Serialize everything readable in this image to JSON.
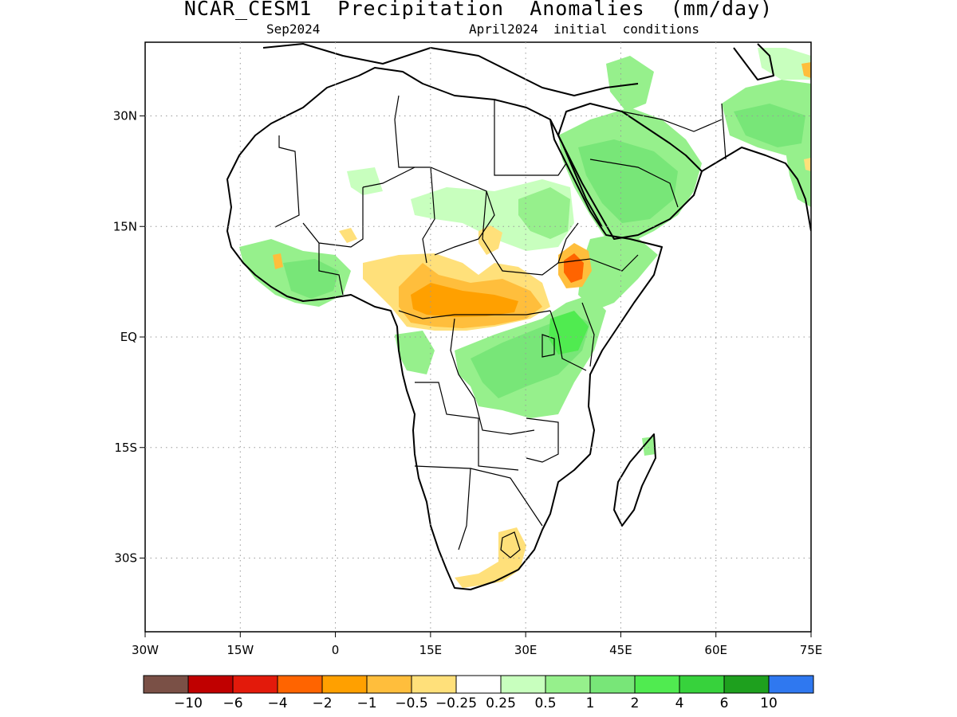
{
  "title": "NCAR_CESM1  Precipitation  Anomalies  (mm/day)",
  "subtitle_left": "Sep2024",
  "subtitle_right": "April2024  initial  conditions",
  "map": {
    "lon_range": [
      -30,
      75
    ],
    "lat_range": [
      -40,
      40
    ],
    "grid": true,
    "x_ticks": [
      "30W",
      "15W",
      "0",
      "15E",
      "30E",
      "45E",
      "60E",
      "75E"
    ],
    "x_tick_values": [
      -30,
      -15,
      0,
      15,
      30,
      45,
      60,
      75
    ],
    "y_ticks": [
      "30N",
      "15N",
      "EQ",
      "15S",
      "30S"
    ],
    "y_tick_values": [
      30,
      15,
      0,
      -15,
      -30
    ]
  },
  "colorbar": {
    "colors": [
      "#7a5046",
      "#c00000",
      "#e31a0b",
      "#ff6400",
      "#ffa000",
      "#ffbe3c",
      "#ffe07a",
      "#ffffff",
      "#c8ffbe",
      "#96f08c",
      "#78e678",
      "#50eb50",
      "#37d23c",
      "#1ea01e",
      "#2f78f0"
    ],
    "labels": [
      "−10",
      "−6",
      "−4",
      "−2",
      "−1",
      "−0.5",
      "−0.25",
      "0.25",
      "0.5",
      "1",
      "2",
      "4",
      "6",
      "10"
    ]
  },
  "colors": {
    "land_line": "#000000",
    "background": "#ffffff"
  }
}
